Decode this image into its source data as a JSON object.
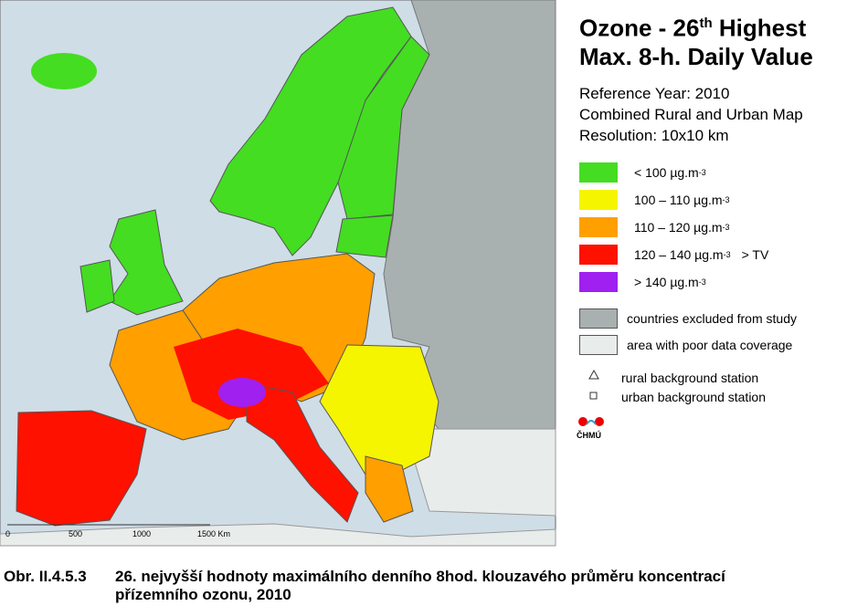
{
  "title": {
    "line1": "Ozone - 26",
    "line1_sup": "th",
    "line1_end": " Highest",
    "line2": "Max. 8-h. Daily Value"
  },
  "info": [
    "Reference Year: 2010",
    "Combined Rural and Urban Map",
    "Resolution: 10x10 km"
  ],
  "legend": [
    {
      "color": "#44dd22",
      "label": "<  100  µg.m",
      "sup": "-3"
    },
    {
      "color": "#f5f500",
      "label": "100 – 110  µg.m",
      "sup": "-3"
    },
    {
      "color": "#ff9f00",
      "label": "110 – 120  µg.m",
      "sup": "-3"
    },
    {
      "color": "#ff1100",
      "label": "120 – 140  µg.m",
      "sup": "-3",
      "note": "> TV"
    },
    {
      "color": "#a020f0",
      "label": ">  140  µg.m",
      "sup": "-3"
    }
  ],
  "areas": [
    {
      "color": "#a9b0b0",
      "label": "countries excluded from study"
    },
    {
      "color": "#e8ecea",
      "label": "area with poor data coverage"
    }
  ],
  "stations": [
    "rural background station",
    "urban background station"
  ],
  "logo": "ČHMÚ",
  "scale": [
    "0",
    "500",
    "1000",
    "1500 Km"
  ],
  "caption": {
    "number": "Obr. II.4.5.3",
    "line1": "26. nejvyšší hodnoty maximálního denního 8hod. klouzavého průměru koncentrací",
    "line2": "přízemního ozonu, 2010"
  }
}
